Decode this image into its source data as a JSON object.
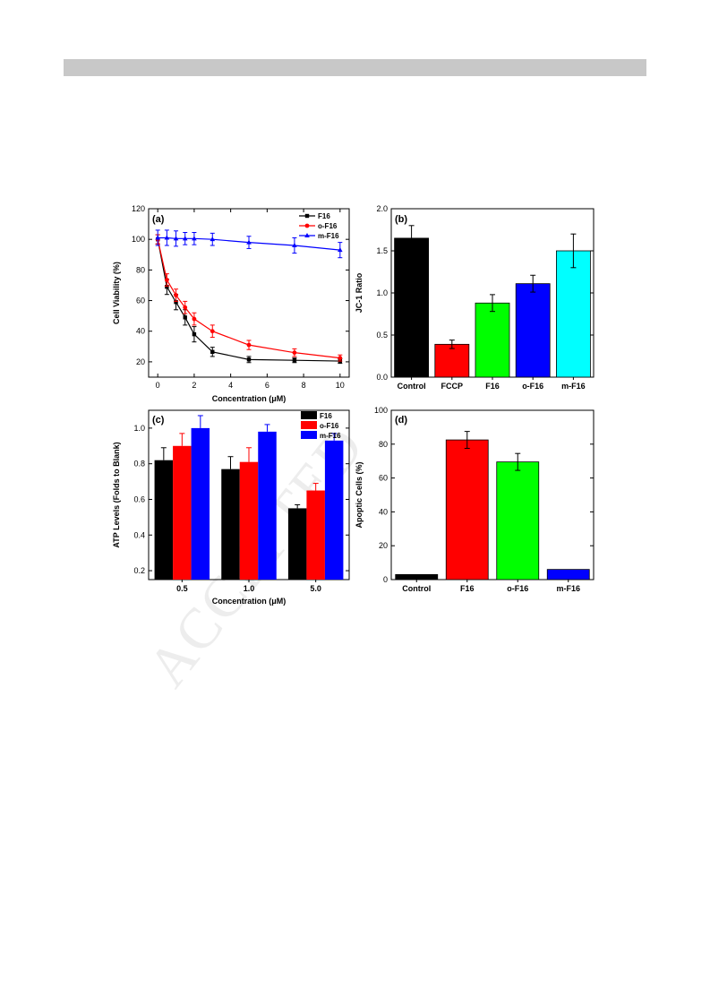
{
  "header": {
    "bar_color": "#c8c8c8"
  },
  "watermark": {
    "text": "ACCEPTED"
  },
  "chart_data": [
    {
      "panel": "(a)",
      "type": "line",
      "xlabel": "Concentration (μM)",
      "ylabel": "Cell Viability (%)",
      "xlim": [
        -0.5,
        10.5
      ],
      "ylim": [
        10,
        120
      ],
      "xticks": [
        0,
        2,
        4,
        6,
        8,
        10
      ],
      "yticks": [
        20,
        40,
        60,
        80,
        100,
        120
      ],
      "legend_position": "top-right",
      "series": [
        {
          "name": "F16",
          "color": "#000000",
          "marker": "square",
          "x": [
            0,
            0.5,
            1,
            1.5,
            2,
            3,
            5,
            7.5,
            10
          ],
          "y": [
            100,
            69,
            59,
            49,
            38,
            26.5,
            21.5,
            21,
            20.5
          ],
          "err": [
            3,
            5,
            5,
            5,
            5,
            3,
            2,
            1.5,
            1.5
          ]
        },
        {
          "name": "o-F16",
          "color": "#ff0000",
          "marker": "circle",
          "x": [
            0,
            0.5,
            1,
            1.5,
            2,
            3,
            5,
            7.5,
            10
          ],
          "y": [
            100,
            73.5,
            63.5,
            55.5,
            48,
            40,
            31,
            26,
            22.5
          ],
          "err": [
            3,
            4,
            4,
            4,
            4,
            4,
            3,
            2.5,
            2
          ]
        },
        {
          "name": "m-F16",
          "color": "#0000ff",
          "marker": "triangle",
          "x": [
            0,
            0.5,
            1,
            1.5,
            2,
            3,
            5,
            7.5,
            10
          ],
          "y": [
            101,
            101,
            100.5,
            100.5,
            100.5,
            100,
            98,
            96,
            93
          ],
          "err": [
            5,
            5,
            5,
            4,
            4,
            4,
            4,
            5,
            5
          ]
        }
      ]
    },
    {
      "panel": "(b)",
      "type": "bar",
      "xlabel": "",
      "ylabel": "JC-1 Ratio",
      "ylim": [
        0,
        2.0
      ],
      "yticks": [
        "0.0",
        "0.5",
        "1.0",
        "1.5",
        "2.0"
      ],
      "categories": [
        "Control",
        "FCCP",
        "F16",
        "o-F16",
        "m-F16"
      ],
      "values": [
        1.65,
        0.39,
        0.88,
        1.11,
        1.5
      ],
      "err": [
        0.15,
        0.05,
        0.1,
        0.1,
        0.2
      ],
      "colors": [
        "#000000",
        "#ff0000",
        "#00ff00",
        "#0000ff",
        "#00ffff"
      ]
    },
    {
      "panel": "(c)",
      "type": "bar",
      "xlabel": "Concentration (μM)",
      "ylabel": "ATP Levels (Folds to Blank)",
      "ylim": [
        0.15,
        1.1
      ],
      "yticks": [
        "0.2",
        "0.4",
        "0.6",
        "0.8",
        "1.0"
      ],
      "categories": [
        "0.5",
        "1.0",
        "5.0"
      ],
      "legend_position": "top-right",
      "series": [
        {
          "name": "F16",
          "color": "#000000",
          "values": [
            0.82,
            0.77,
            0.55
          ],
          "err": [
            0.07,
            0.07,
            0.02
          ]
        },
        {
          "name": "o-F16",
          "color": "#ff0000",
          "values": [
            0.9,
            0.81,
            0.65
          ],
          "err": [
            0.07,
            0.08,
            0.04
          ]
        },
        {
          "name": "m-F16",
          "color": "#0000ff",
          "values": [
            1.0,
            0.98,
            0.93
          ],
          "err": [
            0.07,
            0.04,
            0.04
          ]
        }
      ]
    },
    {
      "panel": "(d)",
      "type": "bar",
      "xlabel": "",
      "ylabel": "Apoptic Cells (%)",
      "ylim": [
        0,
        100
      ],
      "yticks": [
        "0",
        "20",
        "40",
        "60",
        "80",
        "100"
      ],
      "categories": [
        "Control",
        "F16",
        "o-F16",
        "m-F16"
      ],
      "values": [
        3,
        82.5,
        69.5,
        6
      ],
      "err": [
        0,
        5,
        5,
        0
      ],
      "colors": [
        "#000000",
        "#ff0000",
        "#00ff00",
        "#0000ff"
      ]
    }
  ]
}
